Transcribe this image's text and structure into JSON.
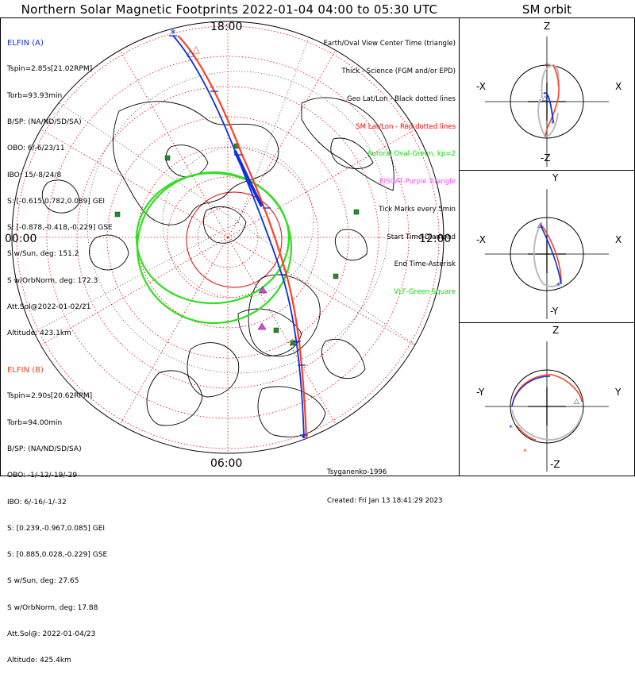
{
  "title": "Northern Solar Magnetic Footprints 2022-01-04 04:00 to 05:30 UTC",
  "orbit_panel_title": "SM orbit",
  "elfin_a": {
    "name": "ELFIN (A)",
    "color": "#1030e0",
    "lines": [
      "Tspin=2.85s[21.02RPM]",
      "Torb=93.93min",
      "B/SP: (NA/ND/SD/SA)",
      "OBO: 6/-6/23/11",
      "IBO: 15/-8/24/8",
      "S: [-0.615,0.782,0.089] GEI",
      "S: [-0.878,-0.418,-0.229] GSE",
      "S w/Sun, deg: 151.2",
      "S w/OrbNorm, deg: 172.3",
      "Att.Sol@2022-01-02/21",
      "Altitude: 423.1km"
    ]
  },
  "elfin_b": {
    "name": "ELFIN (B)",
    "color": "#ff4020",
    "lines": [
      "Tspin=2.90s[20.62RPM]",
      "Torb=94.00min",
      "B/SP: (NA/ND/SD/SA)",
      "OBO: -1/-12/-19/-29",
      "IBO: 6/-16/-1/-32",
      "S: [0.239,-0.967,0.085] GEI",
      "S: [0.885,0.028,-0.229] GSE",
      "S w/Sun, deg: 27.65",
      "S w/OrbNorm, deg: 17.88",
      "Att.Sol@: 2022-01-04/23",
      "Altitude: 425.4km"
    ]
  },
  "legend": [
    {
      "text": "Earth/Oval View Center Time (triangle)",
      "color": "#000000"
    },
    {
      "text": "Thick - Science (FGM and/or EPD)",
      "color": "#000000"
    },
    {
      "text": "Geo Lat/Lon - Black dotted lines",
      "color": "#000000"
    },
    {
      "text": "SM Lat/Lon - Red dotted lines",
      "color": "#ff0000"
    },
    {
      "text": "Auroral Oval-Green, kp=2",
      "color": "#00dd00"
    },
    {
      "text": "EISCAT-Purple Triangle",
      "color": "#ff44ff"
    },
    {
      "text": "Tick Marks every 5min",
      "color": "#000000"
    },
    {
      "text": "Start Time-Diamond",
      "color": "#000000"
    },
    {
      "text": "End Time-Asterisk",
      "color": "#000000"
    },
    {
      "text": "VLF-Green Square",
      "color": "#00dd00"
    }
  ],
  "clock_labels": {
    "top": "18:00",
    "left": "00:00",
    "right": "12:00",
    "bottom": "06:00"
  },
  "footer": {
    "model": "Tsyganenko-1996",
    "created": "Created: Fri Jan 13 18:41:29 2023"
  },
  "orbit_plots": [
    {
      "top": "Z",
      "bottom": "-Z",
      "left": "-X",
      "right": "X"
    },
    {
      "top": "Y",
      "bottom": "-Y",
      "left": "-X",
      "right": "X"
    },
    {
      "top": "Z",
      "bottom": "-Z",
      "left": "-Y",
      "right": "Y"
    }
  ],
  "colors": {
    "elfin_a": "#1030e0",
    "elfin_b": "#ff4020",
    "oval": "#33dd22",
    "sm_grid": "#ee0000",
    "vlf": "#2a8a2a",
    "eiscat": "#dd44dd"
  }
}
